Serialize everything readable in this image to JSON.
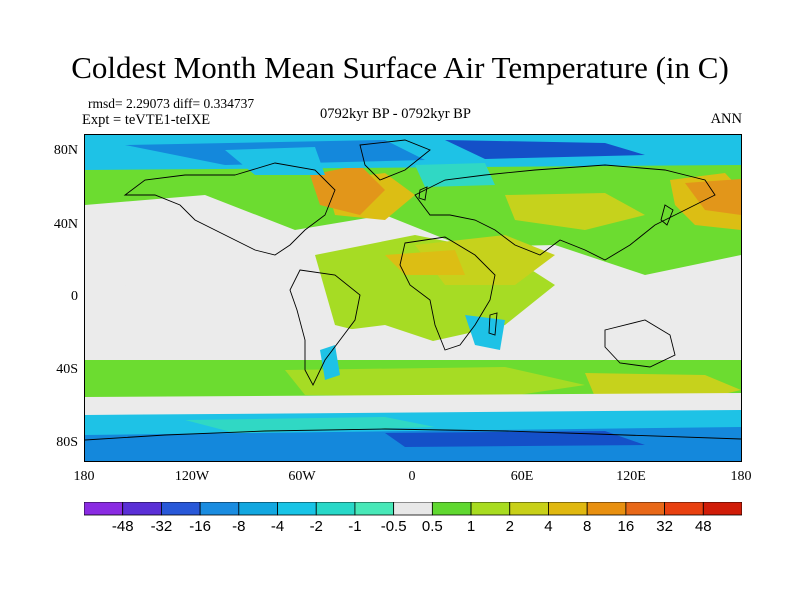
{
  "title": "Coldest Month Mean Surface Air Temperature (in C)",
  "stats": "rmsd= 2.29073 diff= 0.334737",
  "experiment": "Expt = teVTE1-teIXE",
  "period": "0792kyr BP - 0792kyr BP",
  "season": "ANN",
  "lat_labels": [
    "80N",
    "40N",
    "0",
    "40S",
    "80S"
  ],
  "lon_labels": [
    "180",
    "120W",
    "60W",
    "0",
    "60E",
    "120E",
    "180"
  ],
  "colorbar": {
    "labels": [
      "-48",
      "-32",
      "-16",
      "-8",
      "-4",
      "-2",
      "-1",
      "-0.5",
      "0.5",
      "1",
      "2",
      "4",
      "8",
      "16",
      "32",
      "48"
    ],
    "colors": [
      "#8a2be2",
      "#5a2fd6",
      "#2858d8",
      "#1a8ce0",
      "#12a7e0",
      "#18c4e6",
      "#28d8c8",
      "#48e8b8",
      "#e8e8e8",
      "#60d830",
      "#a8dc20",
      "#c8d018",
      "#e0b810",
      "#e89010",
      "#e86818",
      "#e84010",
      "#d01c08"
    ]
  },
  "map_fields": {
    "white": "#ebebeb",
    "green": "#6cdc30",
    "lightgreen": "#a6dc24",
    "yellowgreen": "#c6d21c",
    "yellow": "#dcbe14",
    "orange": "#e2961a",
    "cyan": "#1ec2e6",
    "teal": "#30d8c4",
    "blue": "#1488dc",
    "darkblue": "#1450c8"
  }
}
